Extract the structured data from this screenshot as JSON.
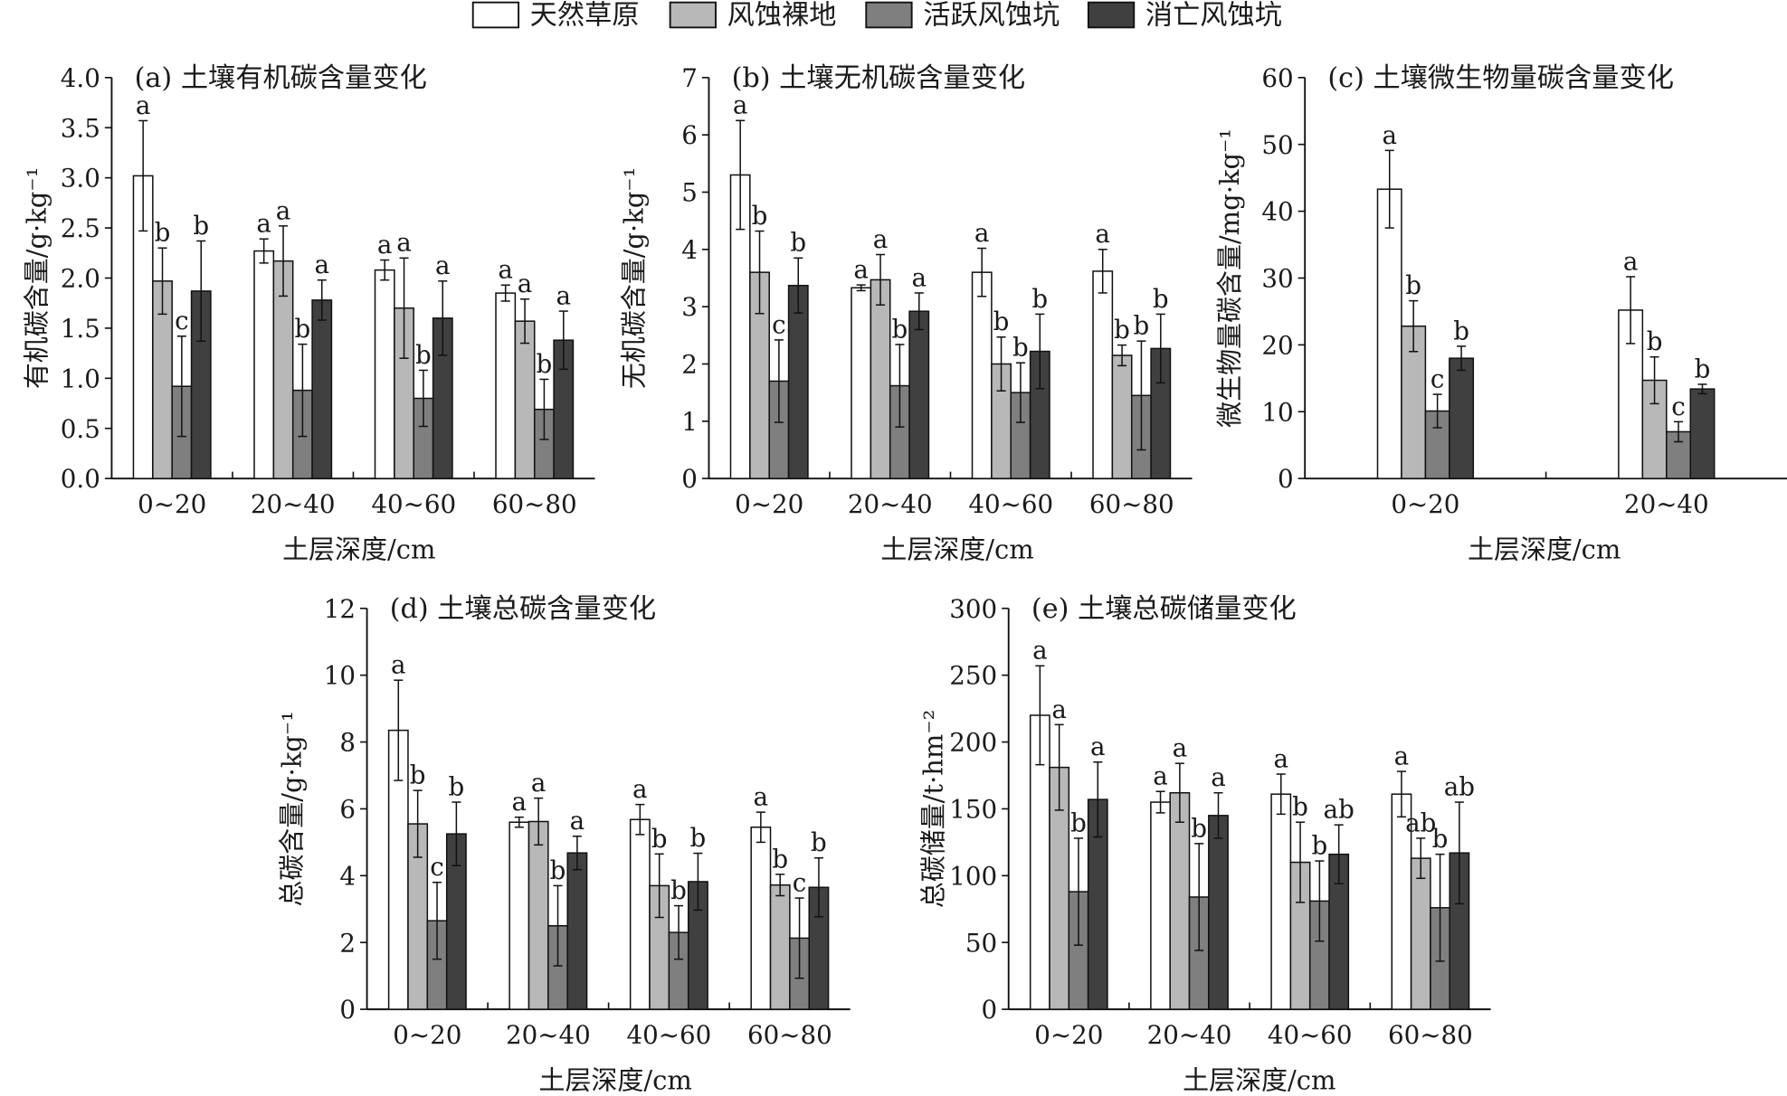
{
  "legend": [
    {
      "label": "天然草原",
      "color": "#ffffff"
    },
    {
      "label": "风蚀裸地",
      "color": "#b8b8b8"
    },
    {
      "label": "活跃风蚀坑",
      "color": "#7f7f7f"
    },
    {
      "label": "消亡风蚀坑",
      "color": "#404040"
    }
  ],
  "chart_data": [
    {
      "type": "bar",
      "title": "(a) 土壤有机碳含量变化",
      "xlabel": "土层深度/cm",
      "ylabel": "有机碳含量/g·kg⁻¹",
      "ylim": [
        0,
        4
      ],
      "ystep": 0.5,
      "ydecimals": 1,
      "categories": [
        "0~20",
        "20~40",
        "40~60",
        "60~80"
      ],
      "series": [
        {
          "name": "天然草原",
          "values": [
            3.02,
            2.27,
            2.08,
            1.85
          ],
          "errors": [
            0.55,
            0.12,
            0.1,
            0.08
          ],
          "letters": [
            "a",
            "a",
            "a",
            "a"
          ]
        },
        {
          "name": "风蚀裸地",
          "values": [
            1.97,
            2.17,
            1.7,
            1.57
          ],
          "errors": [
            0.33,
            0.35,
            0.5,
            0.22
          ],
          "letters": [
            "b",
            "a",
            "a",
            "a"
          ]
        },
        {
          "name": "活跃风蚀坑",
          "values": [
            0.92,
            0.88,
            0.8,
            0.69
          ],
          "errors": [
            0.5,
            0.46,
            0.28,
            0.3
          ],
          "letters": [
            "c",
            "b",
            "b",
            "b"
          ]
        },
        {
          "name": "消亡风蚀坑",
          "values": [
            1.87,
            1.78,
            1.6,
            1.38
          ],
          "errors": [
            0.5,
            0.2,
            0.37,
            0.29
          ],
          "letters": [
            "b",
            "a",
            "a",
            "a"
          ]
        }
      ]
    },
    {
      "type": "bar",
      "title": "(b) 土壤无机碳含量变化",
      "xlabel": "土层深度/cm",
      "ylabel": "无机碳含量/g·kg⁻¹",
      "ylim": [
        0,
        7
      ],
      "ystep": 1,
      "ydecimals": 0,
      "categories": [
        "0~20",
        "20~40",
        "40~60",
        "60~80"
      ],
      "series": [
        {
          "name": "天然草原",
          "values": [
            5.3,
            3.33,
            3.6,
            3.62
          ],
          "errors": [
            0.95,
            0.05,
            0.42,
            0.38
          ],
          "letters": [
            "a",
            "a",
            "a",
            "a"
          ]
        },
        {
          "name": "风蚀裸地",
          "values": [
            3.6,
            3.47,
            2.0,
            2.15
          ],
          "errors": [
            0.72,
            0.44,
            0.47,
            0.18
          ],
          "letters": [
            "b",
            "a",
            "b",
            "b"
          ]
        },
        {
          "name": "活跃风蚀坑",
          "values": [
            1.7,
            1.62,
            1.5,
            1.45
          ],
          "errors": [
            0.72,
            0.72,
            0.52,
            0.95
          ],
          "letters": [
            "c",
            "b",
            "b",
            "b"
          ]
        },
        {
          "name": "消亡风蚀坑",
          "values": [
            3.37,
            2.92,
            2.22,
            2.27
          ],
          "errors": [
            0.48,
            0.32,
            0.65,
            0.6
          ],
          "letters": [
            "b",
            "a",
            "b",
            "b"
          ]
        }
      ]
    },
    {
      "type": "bar",
      "title": "(c) 土壤微生物量碳含量变化",
      "xlabel": "土层深度/cm",
      "ylabel": "微生物量碳含量/mg·kg⁻¹",
      "ylim": [
        0,
        60
      ],
      "ystep": 10,
      "ydecimals": 0,
      "categories": [
        "0~20",
        "20~40"
      ],
      "series": [
        {
          "name": "天然草原",
          "values": [
            43.3,
            25.2
          ],
          "errors": [
            5.8,
            5.0
          ],
          "letters": [
            "a",
            "a"
          ]
        },
        {
          "name": "风蚀裸地",
          "values": [
            22.8,
            14.7
          ],
          "errors": [
            3.8,
            3.5
          ],
          "letters": [
            "b",
            "b"
          ]
        },
        {
          "name": "活跃风蚀坑",
          "values": [
            10.1,
            7.0
          ],
          "errors": [
            2.5,
            1.5
          ],
          "letters": [
            "c",
            "c"
          ]
        },
        {
          "name": "消亡风蚀坑",
          "values": [
            18.0,
            13.4
          ],
          "errors": [
            1.8,
            0.7
          ],
          "letters": [
            "b",
            "b"
          ]
        }
      ]
    },
    {
      "type": "bar",
      "title": "(d) 土壤总碳含量变化",
      "xlabel": "土层深度/cm",
      "ylabel": "总碳含量/g·kg⁻¹",
      "ylim": [
        0,
        12
      ],
      "ystep": 2,
      "ydecimals": 0,
      "categories": [
        "0~20",
        "20~40",
        "40~60",
        "60~80"
      ],
      "series": [
        {
          "name": "天然草原",
          "values": [
            8.35,
            5.6,
            5.68,
            5.45
          ],
          "errors": [
            1.5,
            0.15,
            0.45,
            0.45
          ],
          "letters": [
            "a",
            "a",
            "a",
            "a"
          ]
        },
        {
          "name": "风蚀裸地",
          "values": [
            5.55,
            5.62,
            3.7,
            3.72
          ],
          "errors": [
            1.0,
            0.7,
            0.95,
            0.32
          ],
          "letters": [
            "b",
            "a",
            "b",
            "b"
          ]
        },
        {
          "name": "活跃风蚀坑",
          "values": [
            2.65,
            2.5,
            2.3,
            2.13
          ],
          "errors": [
            1.15,
            1.2,
            0.8,
            1.2
          ],
          "letters": [
            "c",
            "b",
            "b",
            "c"
          ]
        },
        {
          "name": "消亡风蚀坑",
          "values": [
            5.25,
            4.68,
            3.82,
            3.65
          ],
          "errors": [
            0.95,
            0.5,
            0.85,
            0.88
          ],
          "letters": [
            "b",
            "a",
            "b",
            "b"
          ]
        }
      ]
    },
    {
      "type": "bar",
      "title": "(e) 土壤总碳储量变化",
      "xlabel": "土层深度/cm",
      "ylabel": "总碳储量/t·hm⁻²",
      "ylim": [
        0,
        300
      ],
      "ystep": 50,
      "ydecimals": 0,
      "categories": [
        "0~20",
        "20~40",
        "40~60",
        "60~80"
      ],
      "series": [
        {
          "name": "天然草原",
          "values": [
            220,
            155,
            161,
            161
          ],
          "errors": [
            37,
            8,
            15,
            17
          ],
          "letters": [
            "a",
            "a",
            "a",
            "a"
          ]
        },
        {
          "name": "风蚀裸地",
          "values": [
            181,
            162,
            110,
            113
          ],
          "errors": [
            32,
            22,
            30,
            15
          ],
          "letters": [
            "a",
            "a",
            "b",
            "ab"
          ]
        },
        {
          "name": "活跃风蚀坑",
          "values": [
            88,
            84,
            81,
            76
          ],
          "errors": [
            40,
            40,
            30,
            40
          ],
          "letters": [
            "b",
            "b",
            "b",
            "b"
          ]
        },
        {
          "name": "消亡风蚀坑",
          "values": [
            157,
            145,
            116,
            117
          ],
          "errors": [
            28,
            17,
            22,
            38
          ],
          "letters": [
            "a",
            "a",
            "ab",
            "ab"
          ]
        }
      ]
    }
  ]
}
